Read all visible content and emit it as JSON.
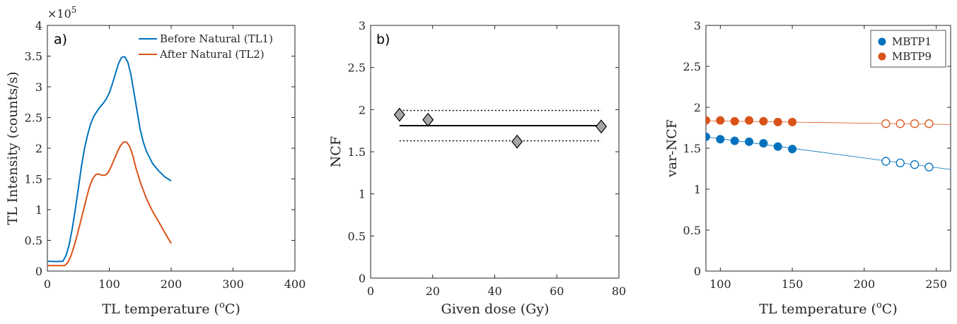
{
  "chart_data": [
    {
      "type": "line",
      "panel_label": "a)",
      "xlabel": "TL temperature (°C)",
      "xlabel_parts": {
        "pre": "TL temperature (",
        "sup": "o",
        "post": "C)"
      },
      "ylabel": "TL Intensity (counts/s)",
      "y_multiplier": {
        "base": "×10",
        "exp": "5"
      },
      "xlim": [
        0,
        400
      ],
      "ylim": [
        0,
        4
      ],
      "xticks": [
        "0",
        "100",
        "200",
        "300",
        "400"
      ],
      "yticks": [
        "0",
        "0.5",
        "1",
        "1.5",
        "2",
        "2.5",
        "3",
        "3.5",
        "4"
      ],
      "legend_position": "top-right",
      "series": [
        {
          "name": "Before Natural (TL1)",
          "color": "#0072BD",
          "x": [
            0,
            15,
            25,
            30,
            35,
            40,
            45,
            50,
            55,
            60,
            65,
            70,
            75,
            80,
            85,
            90,
            95,
            100,
            105,
            110,
            115,
            120,
            125,
            130,
            135,
            140,
            145,
            150,
            155,
            160,
            170,
            180,
            190,
            200
          ],
          "y": [
            0.16,
            0.155,
            0.16,
            0.25,
            0.42,
            0.68,
            1.0,
            1.35,
            1.7,
            2.0,
            2.22,
            2.4,
            2.52,
            2.6,
            2.67,
            2.73,
            2.8,
            2.9,
            3.05,
            3.22,
            3.38,
            3.48,
            3.49,
            3.4,
            3.2,
            2.9,
            2.6,
            2.3,
            2.1,
            1.95,
            1.75,
            1.63,
            1.53,
            1.47
          ]
        },
        {
          "name": "After Natural (TL2)",
          "color": "#D95319",
          "x": [
            0,
            15,
            28,
            33,
            38,
            43,
            48,
            53,
            58,
            63,
            68,
            73,
            78,
            83,
            88,
            93,
            98,
            103,
            108,
            113,
            118,
            123,
            128,
            133,
            138,
            143,
            150,
            160,
            170,
            180,
            190,
            200
          ],
          "y": [
            0.09,
            0.09,
            0.09,
            0.14,
            0.25,
            0.4,
            0.58,
            0.78,
            0.98,
            1.18,
            1.37,
            1.5,
            1.57,
            1.58,
            1.56,
            1.56,
            1.6,
            1.7,
            1.82,
            1.94,
            2.04,
            2.1,
            2.1,
            2.03,
            1.88,
            1.68,
            1.45,
            1.18,
            0.97,
            0.8,
            0.62,
            0.45
          ]
        }
      ]
    },
    {
      "type": "scatter",
      "panel_label": "b)",
      "xlabel": "Given dose (Gy)",
      "ylabel": "NCF",
      "xlim": [
        0,
        80
      ],
      "ylim": [
        0,
        3
      ],
      "xticks": [
        "0",
        "20",
        "40",
        "60",
        "80"
      ],
      "yticks": [
        "0",
        "0.5",
        "1",
        "1.5",
        "2",
        "2.5",
        "3"
      ],
      "points": {
        "x": [
          9.3,
          18.5,
          47.2,
          74.3
        ],
        "y": [
          1.94,
          1.88,
          1.62,
          1.8
        ],
        "marker": "diamond",
        "fill": "#a6a6a6",
        "stroke": "#000000"
      },
      "mean_line": {
        "value": 1.81,
        "x_range": [
          9.3,
          74.3
        ]
      },
      "spread_lines": {
        "upper": 1.99,
        "lower": 1.63,
        "x_range": [
          9.3,
          74.3
        ]
      }
    },
    {
      "type": "scatter",
      "xlabel": "TL temperature (°C)",
      "xlabel_parts": {
        "pre": "TL temperature (",
        "sup": "o",
        "post": "C)"
      },
      "ylabel": "var-NCF",
      "xlim": [
        90,
        260
      ],
      "ylim": [
        0,
        3
      ],
      "xticks": [
        "100",
        "150",
        "200",
        "250"
      ],
      "xtick_values": [
        100,
        150,
        200,
        250
      ],
      "yticks": [
        "0",
        "0.5",
        "1",
        "1.5",
        "2",
        "2.5",
        "3"
      ],
      "legend_position": "top-right",
      "series": [
        {
          "name": "MBTP1",
          "color": "#0072BD",
          "filled": {
            "x": [
              90,
              100,
              110,
              120,
              130,
              140,
              150
            ],
            "y": [
              1.64,
              1.61,
              1.59,
              1.58,
              1.56,
              1.52,
              1.49
            ]
          },
          "open": {
            "x": [
              215,
              225,
              235,
              245
            ],
            "y": [
              1.34,
              1.32,
              1.3,
              1.27
            ]
          },
          "fit": {
            "x": [
              90,
              260
            ],
            "y": [
              1.64,
              1.24
            ]
          }
        },
        {
          "name": "MBTP9",
          "color": "#D95319",
          "filled": {
            "x": [
              90,
              100,
              110,
              120,
              130,
              140,
              150
            ],
            "y": [
              1.84,
              1.84,
              1.83,
              1.84,
              1.83,
              1.82,
              1.82
            ]
          },
          "open": {
            "x": [
              215,
              225,
              235,
              245
            ],
            "y": [
              1.8,
              1.8,
              1.8,
              1.8
            ]
          },
          "fit": {
            "x": [
              90,
              260
            ],
            "y": [
              1.835,
              1.79
            ]
          }
        }
      ]
    }
  ]
}
